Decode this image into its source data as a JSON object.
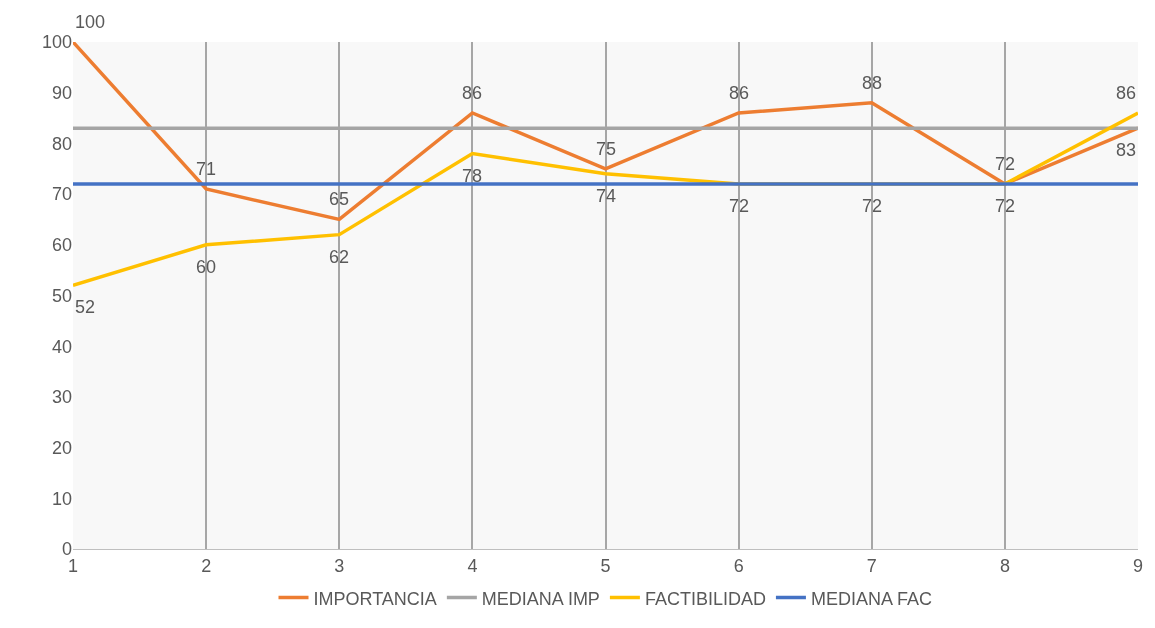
{
  "chart_data": {
    "type": "line",
    "x": [
      1,
      2,
      3,
      4,
      5,
      6,
      7,
      8,
      9
    ],
    "series": [
      {
        "name": "IMPORTANCIA",
        "color": "#ed7d31",
        "values": [
          100,
          71,
          65,
          86,
          75,
          86,
          88,
          72,
          83
        ],
        "value_labels": [
          "100",
          "71",
          "65",
          "86",
          "75",
          "86",
          "88",
          "72",
          "83"
        ]
      },
      {
        "name": "MEDIANA IMP",
        "color": "#a5a5a5",
        "values": [
          83,
          83,
          83,
          83,
          83,
          83,
          83,
          83,
          83
        ]
      },
      {
        "name": "FACTIBILIDAD",
        "color": "#ffc000",
        "values": [
          52,
          60,
          62,
          78,
          74,
          72,
          72,
          72,
          86
        ],
        "value_labels": [
          "52",
          "60",
          "62",
          "78",
          "74",
          "72",
          "72",
          "72",
          "86"
        ]
      },
      {
        "name": "MEDIANA FAC",
        "color": "#4472c4",
        "values": [
          72,
          72,
          72,
          72,
          72,
          72,
          72,
          72,
          72
        ]
      }
    ],
    "xlim": [
      1,
      9
    ],
    "xticks": [
      1,
      2,
      3,
      4,
      5,
      6,
      7,
      8,
      9
    ],
    "ylim": [
      0,
      100
    ],
    "yticks": [
      0,
      10,
      20,
      30,
      40,
      50,
      60,
      70,
      80,
      90,
      100
    ],
    "grid": "x",
    "legend": "bottom",
    "marker": "none",
    "line_style": "solid"
  }
}
